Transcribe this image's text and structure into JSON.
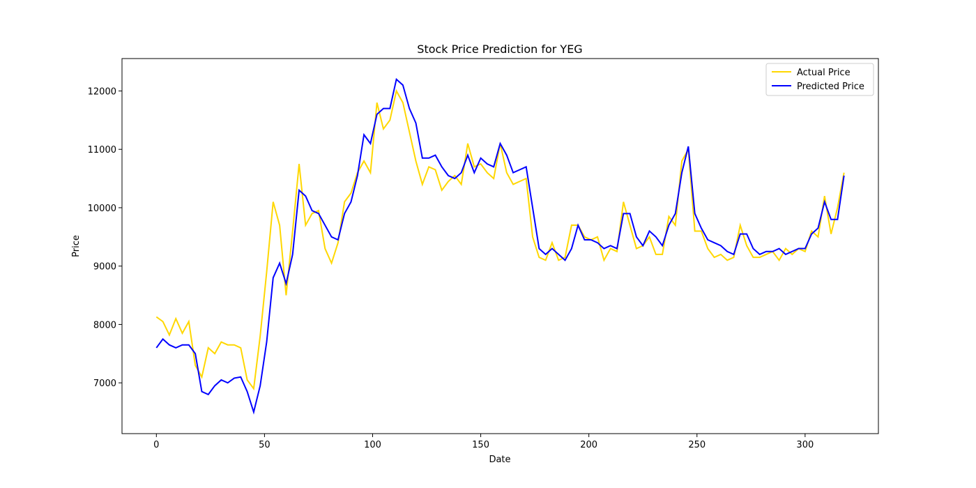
{
  "chart_data": {
    "type": "line",
    "title": "Stock Price Prediction for YEG",
    "xlabel": "Date",
    "ylabel": "Price",
    "x": [
      0,
      3,
      6,
      9,
      12,
      15,
      18,
      21,
      24,
      27,
      30,
      33,
      36,
      39,
      42,
      45,
      48,
      51,
      54,
      57,
      60,
      63,
      66,
      69,
      72,
      75,
      78,
      81,
      84,
      87,
      90,
      93,
      96,
      99,
      102,
      105,
      108,
      111,
      114,
      117,
      120,
      123,
      126,
      129,
      132,
      135,
      138,
      141,
      144,
      147,
      150,
      153,
      156,
      159,
      162,
      165,
      168,
      171,
      174,
      177,
      180,
      183,
      186,
      189,
      192,
      195,
      198,
      201,
      204,
      207,
      210,
      213,
      216,
      219,
      222,
      225,
      228,
      231,
      234,
      237,
      240,
      243,
      246,
      249,
      252,
      255,
      258,
      261,
      264,
      267,
      270,
      273,
      276,
      279,
      282,
      285,
      288,
      291,
      294,
      297,
      300,
      303,
      306,
      309,
      312,
      315,
      318
    ],
    "series": [
      {
        "name": "Actual Price",
        "color": "#ffd700",
        "values": [
          8130,
          8050,
          7820,
          8100,
          7850,
          8050,
          7300,
          7100,
          7600,
          7500,
          7700,
          7650,
          7650,
          7600,
          7050,
          6900,
          7800,
          8900,
          10100,
          9700,
          8500,
          9600,
          10750,
          9700,
          9900,
          9950,
          9300,
          9050,
          9400,
          10100,
          10250,
          10600,
          10800,
          10600,
          11800,
          11350,
          11500,
          12000,
          11800,
          11300,
          10800,
          10400,
          10700,
          10650,
          10300,
          10450,
          10550,
          10400,
          11100,
          10700,
          10750,
          10600,
          10500,
          11100,
          10600,
          10400,
          10450,
          10500,
          9500,
          9150,
          9100,
          9400,
          9100,
          9150,
          9700,
          9700,
          9500,
          9450,
          9500,
          9100,
          9300,
          9250,
          10100,
          9700,
          9300,
          9350,
          9500,
          9200,
          9200,
          9850,
          9700,
          10800,
          11000,
          9600,
          9600,
          9300,
          9150,
          9200,
          9100,
          9150,
          9700,
          9350,
          9150,
          9150,
          9200,
          9250,
          9100,
          9300,
          9200,
          9300,
          9250,
          9600,
          9500,
          10200,
          9550,
          10000,
          10600
        ]
      },
      {
        "name": "Predicted Price",
        "color": "#0000ff",
        "values": [
          7600,
          7750,
          7650,
          7600,
          7650,
          7650,
          7500,
          6850,
          6800,
          6950,
          7050,
          7000,
          7080,
          7100,
          6850,
          6500,
          6950,
          7700,
          8800,
          9050,
          8700,
          9200,
          10300,
          10200,
          9950,
          9900,
          9700,
          9500,
          9450,
          9900,
          10100,
          10550,
          11250,
          11100,
          11600,
          11700,
          11700,
          12200,
          12100,
          11700,
          11450,
          10850,
          10850,
          10900,
          10700,
          10550,
          10500,
          10600,
          10900,
          10600,
          10850,
          10750,
          10700,
          11100,
          10900,
          10600,
          10650,
          10700,
          10000,
          9300,
          9200,
          9300,
          9200,
          9100,
          9300,
          9700,
          9450,
          9450,
          9400,
          9300,
          9350,
          9300,
          9900,
          9900,
          9500,
          9350,
          9600,
          9500,
          9350,
          9700,
          9900,
          10600,
          11050,
          9900,
          9650,
          9450,
          9400,
          9350,
          9250,
          9200,
          9550,
          9550,
          9300,
          9200,
          9250,
          9250,
          9300,
          9200,
          9250,
          9300,
          9300,
          9550,
          9650,
          10100,
          9800,
          9800,
          10550
        ]
      }
    ],
    "xlim": [
      -15.9,
      333.9
    ],
    "ylim": [
      6130,
      12555
    ],
    "xticks": [
      0,
      50,
      100,
      150,
      200,
      250,
      300
    ],
    "yticks": [
      7000,
      8000,
      9000,
      10000,
      11000,
      12000
    ],
    "legend": "upper right"
  }
}
